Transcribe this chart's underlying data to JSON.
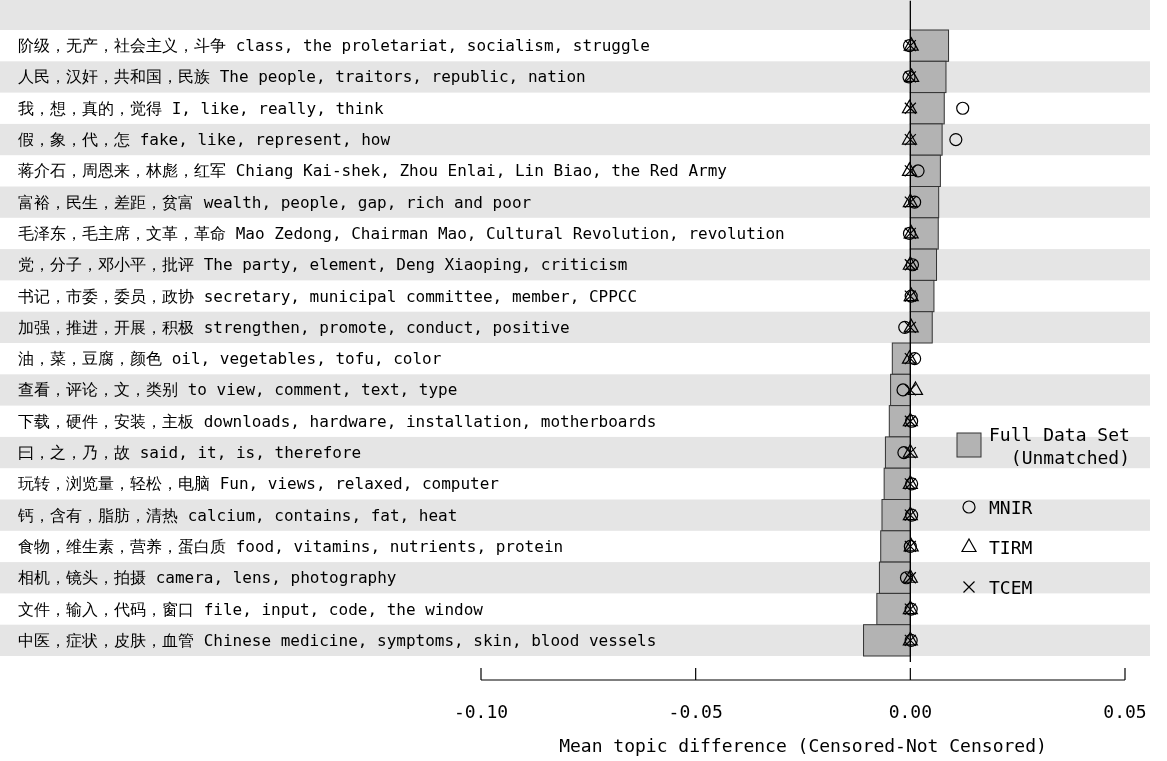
{
  "chart_data": {
    "type": "bar",
    "orientation": "horizontal",
    "xlabel": "Mean topic difference (Censored-Not Censored)",
    "categories": [
      "阶级，无产，社会主义，斗争 class, the proletariat, socialism, struggle",
      "人民，汉奸，共和国，民族 The people, traitors, republic, nation",
      "我，想，真的，觉得 I, like, really, think",
      "假，象，代，怎 fake, like, represent, how",
      "蒋介石，周恩来，林彪，红军 Chiang Kai-shek, Zhou Enlai, Lin Biao, the Red Army",
      "富裕，民生，差距，贫富 wealth, people, gap, rich and poor",
      "毛泽东，毛主席，文革，革命 Mao Zedong, Chairman Mao, Cultural Revolution, revolution",
      "党，分子，邓小平，批评 The party, element, Deng Xiaoping, criticism",
      "书记，市委，委员，政协 secretary, municipal committee, member, CPPCC",
      "加强，推进，开展，积极 strengthen, promote, conduct, positive",
      "油，菜，豆腐，颜色 oil, vegetables, tofu, color",
      "查看，评论，文，类别 to view, comment, text, type",
      "下载，硬件，安装，主板 downloads, hardware, installation, motherboards",
      "曰，之，乃，故 said, it, is, therefore",
      "玩转，浏览量，轻松，电脑 Fun, views, relaxed, computer",
      "钙，含有，脂肪，清热 calcium, contains, fat, heat",
      "食物，维生素，营养，蛋白质 food, vitamins, nutrients, protein",
      "相机，镜头，拍摄 camera, lens, photography",
      "文件，输入，代码，窗口 file, input, code, the window",
      "中医，症状，皮肤，血管 Chinese medicine, symptoms, skin, blood vessels"
    ],
    "series": [
      {
        "name": "Full Data Set (Unmatched)",
        "color": "#b3b3b3",
        "values": [
          0.0089,
          0.0083,
          0.0079,
          0.0074,
          0.007,
          0.0066,
          0.0065,
          0.0061,
          0.0055,
          0.0051,
          -0.0042,
          -0.0046,
          -0.0049,
          -0.0058,
          -0.0061,
          -0.0066,
          -0.0069,
          -0.0072,
          -0.0078,
          -0.0109
        ]
      },
      {
        "name": "MNIR",
        "type": "scatter",
        "marker": "circle",
        "color": "#000000",
        "values": [
          -0.0002,
          -0.0003,
          0.0122,
          0.0106,
          0.0018,
          0.001,
          -0.0002,
          0.0005,
          0.0002,
          -0.0013,
          0.001,
          -0.0017,
          0.0003,
          -0.0015,
          0.0003,
          0.0003,
          0.0,
          -0.0009,
          0.0002,
          0.0002
        ]
      },
      {
        "name": "TIRM",
        "type": "scatter",
        "marker": "triangle",
        "color": "#000000",
        "values": [
          0.0002,
          0.0003,
          -0.0002,
          -0.0002,
          -0.0002,
          0.0,
          0.0002,
          0.0,
          0.0002,
          0.0002,
          -0.0002,
          0.0012,
          0.0,
          0.0,
          0.0,
          0.0,
          0.0002,
          0.0,
          0.0,
          0.0
        ]
      },
      {
        "name": "TCEM",
        "type": "scatter",
        "marker": "cross",
        "color": "#000000",
        "values": [
          0,
          0,
          0,
          0,
          0,
          0,
          0,
          0,
          0,
          0,
          0,
          0,
          0,
          0,
          0,
          0,
          0,
          0,
          0,
          0
        ]
      }
    ],
    "xlim": [
      -0.1,
      0.05
    ],
    "xticks": [
      {
        "value": -0.1,
        "label": "-0.10"
      },
      {
        "value": -0.05,
        "label": "-0.05"
      },
      {
        "value": 0,
        "label": "0.00"
      },
      {
        "value": 0.05,
        "label": "0.05"
      }
    ],
    "ref_lines": [
      {
        "axis": "x",
        "value": 0,
        "color": "#000000"
      }
    ],
    "legend": "right"
  }
}
